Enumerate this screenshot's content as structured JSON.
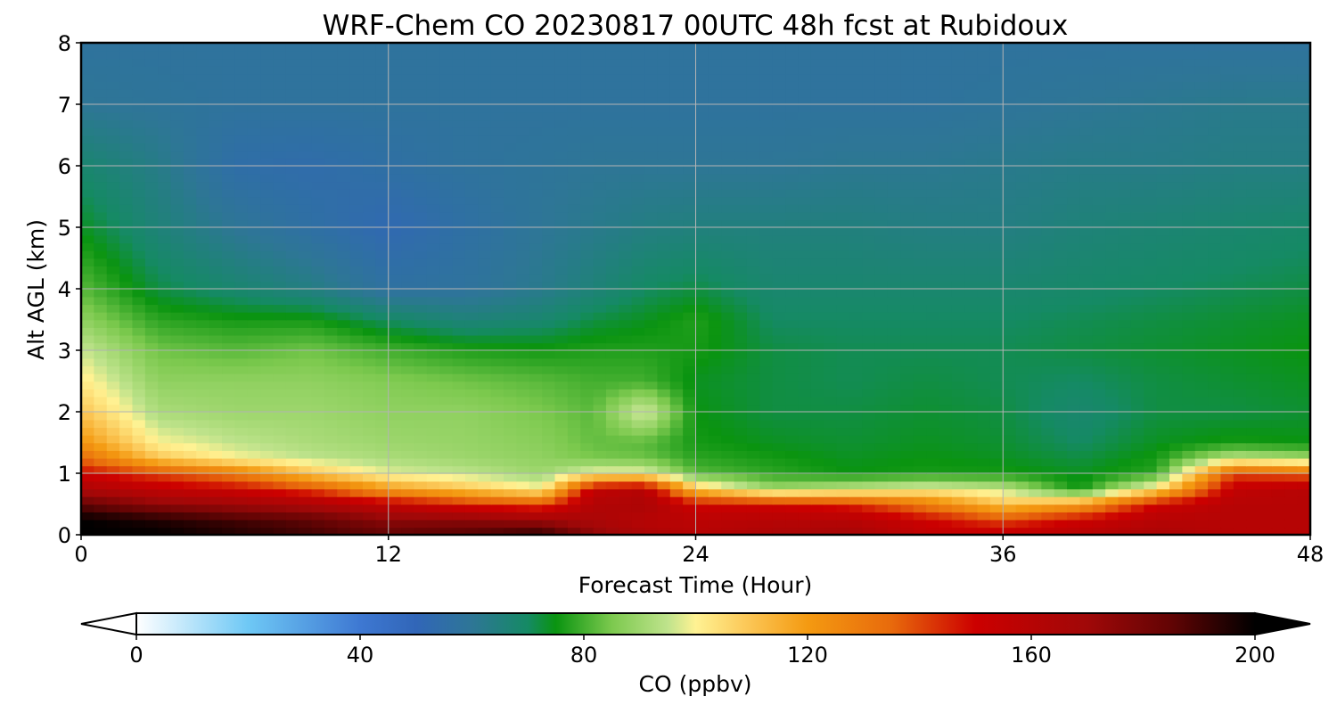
{
  "chart_data": {
    "type": "heatmap",
    "title": "WRF-Chem CO  20230817 00UTC 48h fcst at Rubidoux",
    "xlabel": "Forecast Time (Hour)",
    "ylabel": "Alt AGL (km)",
    "xlim": [
      0,
      48
    ],
    "ylim": [
      0,
      8
    ],
    "x_ticks": [
      0,
      12,
      24,
      36,
      48
    ],
    "y_ticks": [
      0,
      1,
      2,
      3,
      4,
      5,
      6,
      7,
      8
    ],
    "grid": true,
    "x": [
      0,
      3,
      6,
      9,
      12,
      15,
      18,
      20,
      22,
      24,
      27,
      30,
      33,
      36,
      39,
      42,
      45,
      48
    ],
    "y": [
      0,
      0.25,
      0.5,
      0.75,
      1,
      1.25,
      1.5,
      2,
      2.5,
      3,
      3.5,
      4,
      5,
      6,
      7,
      8
    ],
    "z": [
      [
        200,
        200,
        195,
        190,
        185,
        188,
        195,
        175,
        165,
        160,
        165,
        168,
        155,
        155,
        160,
        165,
        160,
        160
      ],
      [
        200,
        195,
        190,
        185,
        175,
        175,
        170,
        165,
        160,
        158,
        160,
        160,
        150,
        140,
        150,
        160,
        160,
        160
      ],
      [
        185,
        175,
        170,
        165,
        155,
        145,
        140,
        162,
        165,
        150,
        150,
        145,
        130,
        110,
        120,
        150,
        160,
        160
      ],
      [
        165,
        155,
        150,
        140,
        120,
        110,
        100,
        155,
        160,
        110,
        90,
        95,
        100,
        95,
        75,
        105,
        155,
        160
      ],
      [
        150,
        140,
        130,
        110,
        98,
        95,
        90,
        100,
        100,
        82,
        78,
        75,
        76,
        76,
        74,
        78,
        140,
        135
      ],
      [
        135,
        110,
        100,
        95,
        92,
        90,
        88,
        85,
        84,
        78,
        76,
        74,
        75,
        74,
        72,
        76,
        95,
        90
      ],
      [
        122,
        100,
        95,
        92,
        90,
        89,
        87,
        83,
        82,
        76,
        74,
        73,
        74,
        73,
        70,
        74,
        76,
        75
      ],
      [
        110,
        92,
        90,
        90,
        88,
        88,
        85,
        82,
        98,
        75,
        72,
        72,
        73,
        72,
        68,
        72,
        72,
        73
      ],
      [
        102,
        88,
        88,
        88,
        86,
        84,
        82,
        80,
        80,
        74,
        72,
        71,
        72,
        71,
        70,
        72,
        73,
        74
      ],
      [
        96,
        84,
        82,
        84,
        80,
        77,
        76,
        77,
        77,
        76,
        72,
        71,
        71,
        71,
        72,
        73,
        74,
        75
      ],
      [
        88,
        78,
        76,
        76,
        70,
        66,
        68,
        72,
        74,
        77,
        70,
        70,
        70,
        70,
        71,
        72,
        73,
        74
      ],
      [
        82,
        72,
        68,
        64,
        57,
        58,
        62,
        66,
        70,
        72,
        68,
        68,
        68,
        68,
        69,
        70,
        71,
        72
      ],
      [
        74,
        66,
        60,
        56,
        52,
        56,
        60,
        62,
        64,
        65,
        65,
        65,
        64,
        64,
        66,
        67,
        68,
        69
      ],
      [
        68,
        63,
        55,
        54,
        56,
        58,
        59,
        60,
        60,
        60,
        60,
        61,
        61,
        62,
        63,
        63,
        64,
        64
      ],
      [
        60,
        59,
        58,
        58,
        58,
        58,
        58,
        58,
        58,
        58,
        58,
        58,
        58,
        59,
        60,
        61,
        62,
        62
      ],
      [
        58,
        58,
        58,
        58,
        58,
        58,
        58,
        58,
        58,
        58,
        58,
        58,
        58,
        58,
        58,
        58,
        58,
        58
      ]
    ],
    "colorbar": {
      "label": "CO  (ppbv)",
      "min": 0,
      "max": 200,
      "ticks": [
        0,
        40,
        80,
        120,
        160,
        200
      ],
      "extend": "both",
      "color_stops": [
        {
          "v": 0,
          "c": "#ffffff"
        },
        {
          "v": 20,
          "c": "#6ec8f5"
        },
        {
          "v": 40,
          "c": "#3e78d2"
        },
        {
          "v": 50,
          "c": "#3166b8"
        },
        {
          "v": 60,
          "c": "#2e7696"
        },
        {
          "v": 70,
          "c": "#158a64"
        },
        {
          "v": 75,
          "c": "#0a9410"
        },
        {
          "v": 85,
          "c": "#7cc94e"
        },
        {
          "v": 95,
          "c": "#bfe38c"
        },
        {
          "v": 100,
          "c": "#fff293"
        },
        {
          "v": 110,
          "c": "#fbc452"
        },
        {
          "v": 120,
          "c": "#f49a11"
        },
        {
          "v": 135,
          "c": "#e86a0c"
        },
        {
          "v": 150,
          "c": "#cc0000"
        },
        {
          "v": 170,
          "c": "#a00808"
        },
        {
          "v": 185,
          "c": "#620404"
        },
        {
          "v": 200,
          "c": "#000000"
        }
      ]
    }
  }
}
